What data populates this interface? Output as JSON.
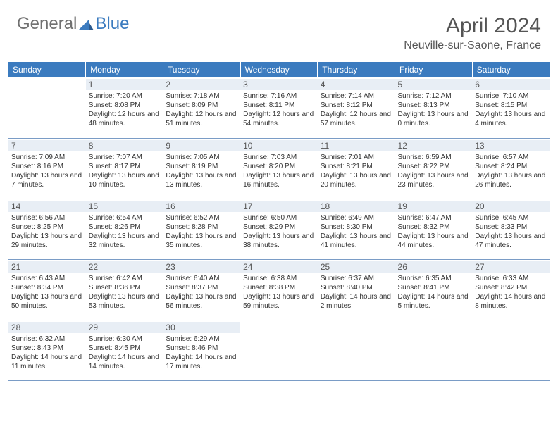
{
  "colors": {
    "header_bg": "#3b7bbf",
    "header_text": "#ffffff",
    "daynum_bg": "#e8eef5",
    "border": "#7a9cc6",
    "title_color": "#555555",
    "body_text": "#333333"
  },
  "logo": {
    "part1": "General",
    "part2": "Blue"
  },
  "title": "April 2024",
  "location": "Neuville-sur-Saone, France",
  "weekdays": [
    "Sunday",
    "Monday",
    "Tuesday",
    "Wednesday",
    "Thursday",
    "Friday",
    "Saturday"
  ],
  "weeks": [
    [
      {
        "day": "",
        "sunrise": "",
        "sunset": "",
        "daylight": ""
      },
      {
        "day": "1",
        "sunrise": "Sunrise: 7:20 AM",
        "sunset": "Sunset: 8:08 PM",
        "daylight": "Daylight: 12 hours and 48 minutes."
      },
      {
        "day": "2",
        "sunrise": "Sunrise: 7:18 AM",
        "sunset": "Sunset: 8:09 PM",
        "daylight": "Daylight: 12 hours and 51 minutes."
      },
      {
        "day": "3",
        "sunrise": "Sunrise: 7:16 AM",
        "sunset": "Sunset: 8:11 PM",
        "daylight": "Daylight: 12 hours and 54 minutes."
      },
      {
        "day": "4",
        "sunrise": "Sunrise: 7:14 AM",
        "sunset": "Sunset: 8:12 PM",
        "daylight": "Daylight: 12 hours and 57 minutes."
      },
      {
        "day": "5",
        "sunrise": "Sunrise: 7:12 AM",
        "sunset": "Sunset: 8:13 PM",
        "daylight": "Daylight: 13 hours and 0 minutes."
      },
      {
        "day": "6",
        "sunrise": "Sunrise: 7:10 AM",
        "sunset": "Sunset: 8:15 PM",
        "daylight": "Daylight: 13 hours and 4 minutes."
      }
    ],
    [
      {
        "day": "7",
        "sunrise": "Sunrise: 7:09 AM",
        "sunset": "Sunset: 8:16 PM",
        "daylight": "Daylight: 13 hours and 7 minutes."
      },
      {
        "day": "8",
        "sunrise": "Sunrise: 7:07 AM",
        "sunset": "Sunset: 8:17 PM",
        "daylight": "Daylight: 13 hours and 10 minutes."
      },
      {
        "day": "9",
        "sunrise": "Sunrise: 7:05 AM",
        "sunset": "Sunset: 8:19 PM",
        "daylight": "Daylight: 13 hours and 13 minutes."
      },
      {
        "day": "10",
        "sunrise": "Sunrise: 7:03 AM",
        "sunset": "Sunset: 8:20 PM",
        "daylight": "Daylight: 13 hours and 16 minutes."
      },
      {
        "day": "11",
        "sunrise": "Sunrise: 7:01 AM",
        "sunset": "Sunset: 8:21 PM",
        "daylight": "Daylight: 13 hours and 20 minutes."
      },
      {
        "day": "12",
        "sunrise": "Sunrise: 6:59 AM",
        "sunset": "Sunset: 8:22 PM",
        "daylight": "Daylight: 13 hours and 23 minutes."
      },
      {
        "day": "13",
        "sunrise": "Sunrise: 6:57 AM",
        "sunset": "Sunset: 8:24 PM",
        "daylight": "Daylight: 13 hours and 26 minutes."
      }
    ],
    [
      {
        "day": "14",
        "sunrise": "Sunrise: 6:56 AM",
        "sunset": "Sunset: 8:25 PM",
        "daylight": "Daylight: 13 hours and 29 minutes."
      },
      {
        "day": "15",
        "sunrise": "Sunrise: 6:54 AM",
        "sunset": "Sunset: 8:26 PM",
        "daylight": "Daylight: 13 hours and 32 minutes."
      },
      {
        "day": "16",
        "sunrise": "Sunrise: 6:52 AM",
        "sunset": "Sunset: 8:28 PM",
        "daylight": "Daylight: 13 hours and 35 minutes."
      },
      {
        "day": "17",
        "sunrise": "Sunrise: 6:50 AM",
        "sunset": "Sunset: 8:29 PM",
        "daylight": "Daylight: 13 hours and 38 minutes."
      },
      {
        "day": "18",
        "sunrise": "Sunrise: 6:49 AM",
        "sunset": "Sunset: 8:30 PM",
        "daylight": "Daylight: 13 hours and 41 minutes."
      },
      {
        "day": "19",
        "sunrise": "Sunrise: 6:47 AM",
        "sunset": "Sunset: 8:32 PM",
        "daylight": "Daylight: 13 hours and 44 minutes."
      },
      {
        "day": "20",
        "sunrise": "Sunrise: 6:45 AM",
        "sunset": "Sunset: 8:33 PM",
        "daylight": "Daylight: 13 hours and 47 minutes."
      }
    ],
    [
      {
        "day": "21",
        "sunrise": "Sunrise: 6:43 AM",
        "sunset": "Sunset: 8:34 PM",
        "daylight": "Daylight: 13 hours and 50 minutes."
      },
      {
        "day": "22",
        "sunrise": "Sunrise: 6:42 AM",
        "sunset": "Sunset: 8:36 PM",
        "daylight": "Daylight: 13 hours and 53 minutes."
      },
      {
        "day": "23",
        "sunrise": "Sunrise: 6:40 AM",
        "sunset": "Sunset: 8:37 PM",
        "daylight": "Daylight: 13 hours and 56 minutes."
      },
      {
        "day": "24",
        "sunrise": "Sunrise: 6:38 AM",
        "sunset": "Sunset: 8:38 PM",
        "daylight": "Daylight: 13 hours and 59 minutes."
      },
      {
        "day": "25",
        "sunrise": "Sunrise: 6:37 AM",
        "sunset": "Sunset: 8:40 PM",
        "daylight": "Daylight: 14 hours and 2 minutes."
      },
      {
        "day": "26",
        "sunrise": "Sunrise: 6:35 AM",
        "sunset": "Sunset: 8:41 PM",
        "daylight": "Daylight: 14 hours and 5 minutes."
      },
      {
        "day": "27",
        "sunrise": "Sunrise: 6:33 AM",
        "sunset": "Sunset: 8:42 PM",
        "daylight": "Daylight: 14 hours and 8 minutes."
      }
    ],
    [
      {
        "day": "28",
        "sunrise": "Sunrise: 6:32 AM",
        "sunset": "Sunset: 8:43 PM",
        "daylight": "Daylight: 14 hours and 11 minutes."
      },
      {
        "day": "29",
        "sunrise": "Sunrise: 6:30 AM",
        "sunset": "Sunset: 8:45 PM",
        "daylight": "Daylight: 14 hours and 14 minutes."
      },
      {
        "day": "30",
        "sunrise": "Sunrise: 6:29 AM",
        "sunset": "Sunset: 8:46 PM",
        "daylight": "Daylight: 14 hours and 17 minutes."
      },
      {
        "day": "",
        "sunrise": "",
        "sunset": "",
        "daylight": ""
      },
      {
        "day": "",
        "sunrise": "",
        "sunset": "",
        "daylight": ""
      },
      {
        "day": "",
        "sunrise": "",
        "sunset": "",
        "daylight": ""
      },
      {
        "day": "",
        "sunrise": "",
        "sunset": "",
        "daylight": ""
      }
    ]
  ]
}
